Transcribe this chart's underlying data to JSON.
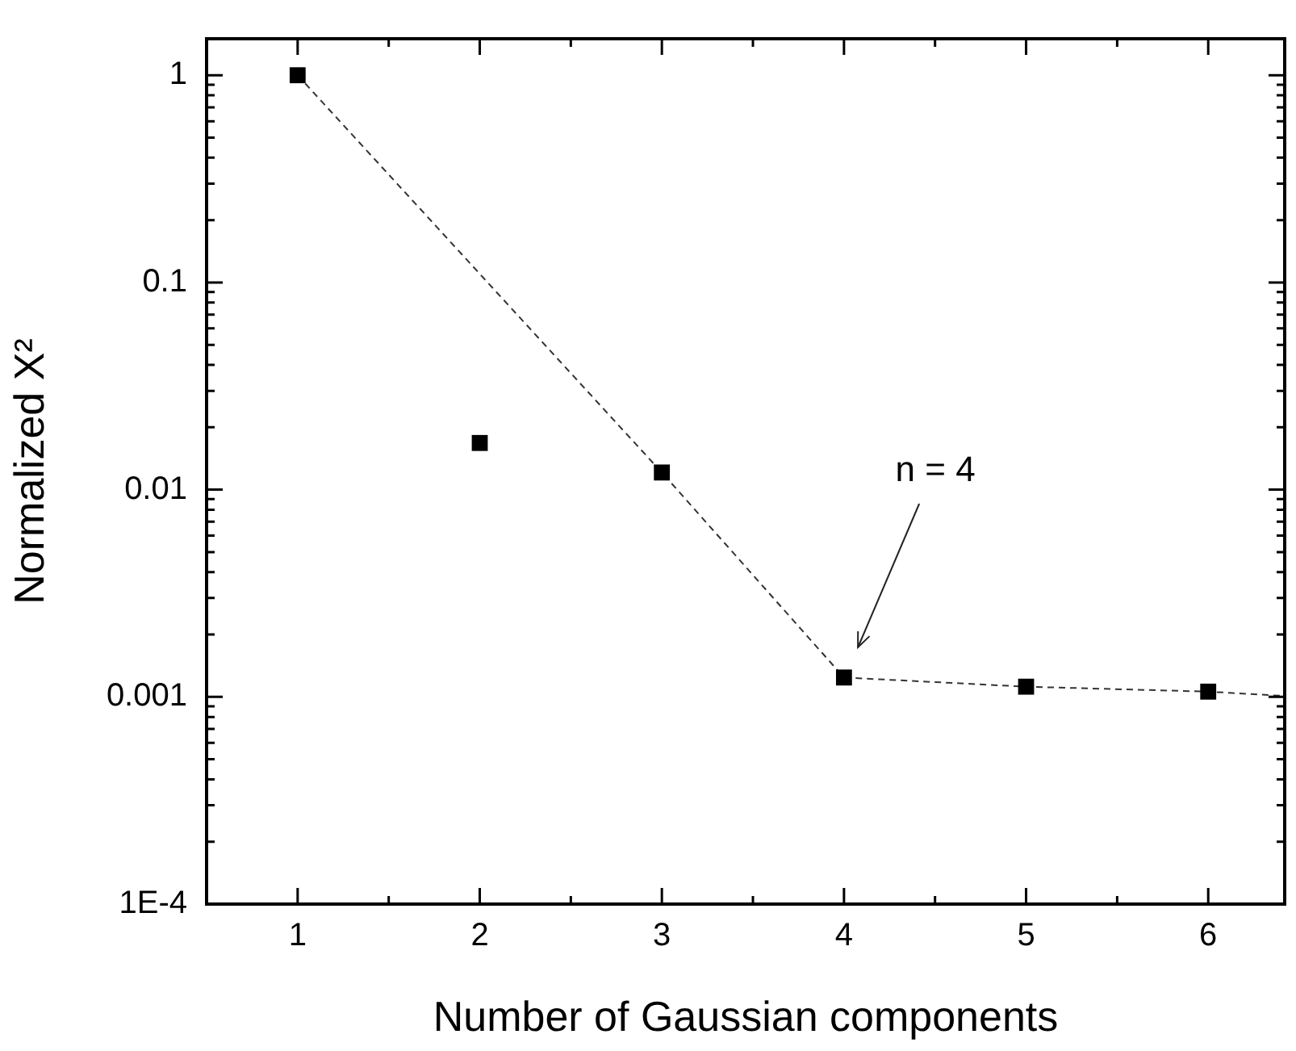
{
  "chart_data": {
    "type": "scatter",
    "xlabel": "Number of Gaussian components",
    "ylabel": "Normalized X²",
    "x": [
      1,
      2,
      3,
      4,
      5,
      6
    ],
    "xlim": [
      0.5,
      6.42
    ],
    "xticks": [
      1,
      2,
      3,
      4,
      5,
      6
    ],
    "ylim": [
      0.0001,
      1.5
    ],
    "yticks": [
      {
        "value": 0.0001,
        "label": "1E-4"
      },
      0.001,
      0.01,
      0.1,
      1
    ],
    "log": "y",
    "series": [
      {
        "color": "#000000",
        "marker": "square",
        "values": [
          1,
          0.0168,
          0.0121,
          0.00124,
          0.00112,
          0.00106
        ]
      },
      {
        "type": "line",
        "x": [
          1,
          3,
          4,
          5,
          6,
          6.42
        ],
        "values": [
          1,
          0.0121,
          0.00124,
          0.00112,
          0.00106,
          0.00101
        ],
        "color": "#333333",
        "line_style": "dashed",
        "marker": "none"
      }
    ],
    "annotations": [
      "n = 4"
    ]
  }
}
